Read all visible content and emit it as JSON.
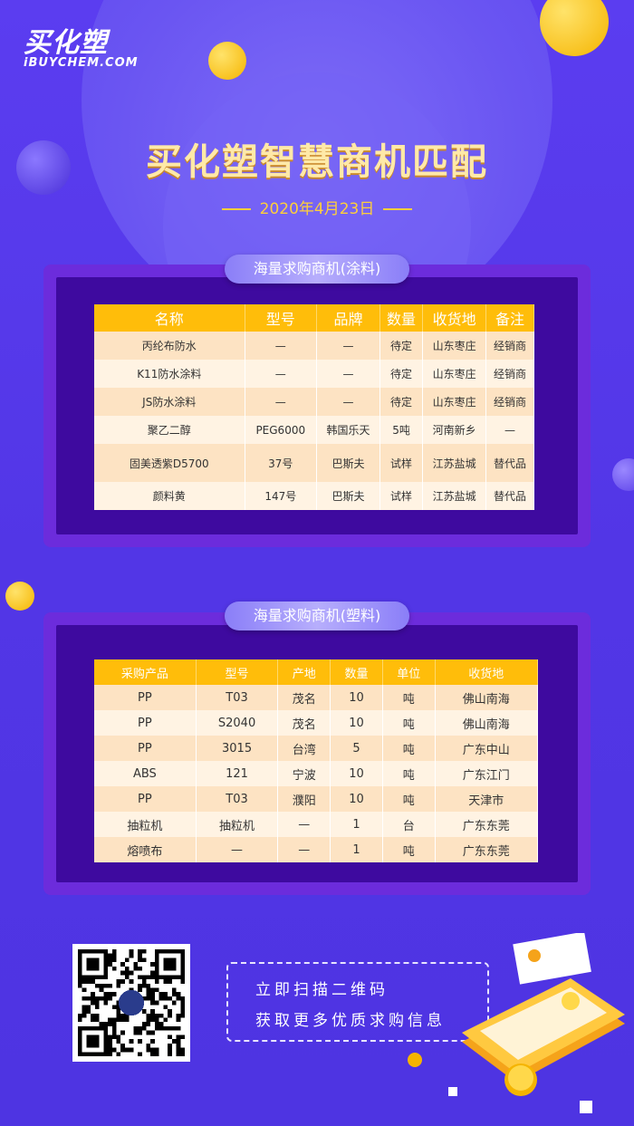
{
  "logo": {
    "cn": "买化塑",
    "en": "iBUYCHEM.COM"
  },
  "title": "买化塑智慧商机匹配",
  "date": "2020年4月23日",
  "section1": {
    "label": "海量求购商机(涂料)",
    "headers": [
      "名称",
      "型号",
      "品牌",
      "数量",
      "收货地",
      "备注"
    ],
    "rows": [
      [
        "丙纶布防水",
        "—",
        "—",
        "待定",
        "山东枣庄",
        "经销商"
      ],
      [
        "K11防水涂料",
        "—",
        "—",
        "待定",
        "山东枣庄",
        "经销商"
      ],
      [
        "JS防水涂料",
        "—",
        "—",
        "待定",
        "山东枣庄",
        "经销商"
      ],
      [
        "聚乙二醇",
        "PEG6000",
        "韩国乐天",
        "5吨",
        "河南新乡",
        "—"
      ],
      [
        "固美透紫D5700",
        "37号",
        "巴斯夫",
        "试样",
        "江苏盐城",
        "替代品"
      ],
      [
        "颜料黄",
        "147号",
        "巴斯夫",
        "试样",
        "江苏盐城",
        "替代品"
      ]
    ]
  },
  "section2": {
    "label": "海量求购商机(塑料)",
    "headers": [
      "采购产品",
      "型号",
      "产地",
      "数量",
      "单位",
      "收货地"
    ],
    "rows": [
      [
        "PP",
        "T03",
        "茂名",
        "10",
        "吨",
        "佛山南海"
      ],
      [
        "PP",
        "S2040",
        "茂名",
        "10",
        "吨",
        "佛山南海"
      ],
      [
        "PP",
        "3015",
        "台湾",
        "5",
        "吨",
        "广东中山"
      ],
      [
        "ABS",
        "121",
        "宁波",
        "10",
        "吨",
        "广东江门"
      ],
      [
        "PP",
        "T03",
        "濮阳",
        "10",
        "吨",
        "天津市"
      ],
      [
        "抽粒机",
        "抽粒机",
        "—",
        "1",
        "台",
        "广东东莞"
      ],
      [
        "熔喷布",
        "—",
        "—",
        "1",
        "吨",
        "广东东莞"
      ]
    ]
  },
  "cta": {
    "line1": "立即扫描二维码",
    "line2": "获取更多优质求购信息"
  },
  "colors": {
    "background": "#5236e6",
    "accent": "#ffbd0a",
    "panel": "#3e0a9f"
  }
}
